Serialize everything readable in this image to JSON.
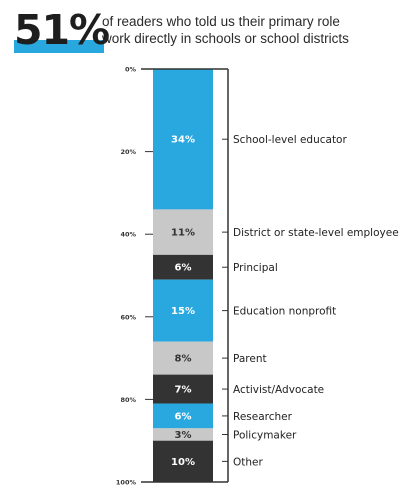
{
  "header": {
    "stat": "51%",
    "text_line1": "of readers who told us their primary role",
    "text_line2": "work directly in schools or school districts"
  },
  "colors": {
    "blue": "#29a8e0",
    "gray": "#c8c8c8",
    "dark": "#333333",
    "label_light": "#ffffff",
    "label_dark": "#333333"
  },
  "chart_data": {
    "type": "bar",
    "stacked": true,
    "orientation": "vertical",
    "axis": {
      "ylim": [
        0,
        100
      ],
      "ticks": [
        {
          "value": 0,
          "label": "0%"
        },
        {
          "value": 20,
          "label": "20%"
        },
        {
          "value": 40,
          "label": "40%"
        },
        {
          "value": 60,
          "label": "60%"
        },
        {
          "value": 80,
          "label": "80%"
        },
        {
          "value": 100,
          "label": "100%"
        }
      ]
    },
    "segments": [
      {
        "category": "School-level educator",
        "value": 34,
        "label": "34%",
        "color": "blue"
      },
      {
        "category": "District or state-level employee",
        "value": 11,
        "label": "11%",
        "color": "gray"
      },
      {
        "category": "Principal",
        "value": 6,
        "label": "6%",
        "color": "dark"
      },
      {
        "category": "Education nonprofit",
        "value": 15,
        "label": "15%",
        "color": "blue"
      },
      {
        "category": "Parent",
        "value": 8,
        "label": "8%",
        "color": "gray"
      },
      {
        "category": "Activist/Advocate",
        "value": 7,
        "label": "7%",
        "color": "dark"
      },
      {
        "category": "Researcher",
        "value": 6,
        "label": "6%",
        "color": "blue"
      },
      {
        "category": "Policymaker",
        "value": 3,
        "label": "3%",
        "color": "gray"
      },
      {
        "category": "Other",
        "value": 10,
        "label": "10%",
        "color": "dark"
      }
    ]
  }
}
